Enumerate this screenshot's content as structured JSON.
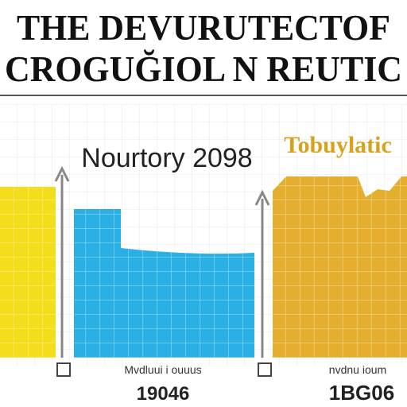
{
  "header": {
    "line1": "THE DEVURUTECTOF",
    "line2": "CROGUĞIOL N REUTIC"
  },
  "panel": {
    "left_title": "Nourtory 2098",
    "right_title": "Tobuylatic",
    "bottom_labels": [
      "Mvdluui i ouuus",
      "nvdnu ioum"
    ],
    "bottom_numbers": [
      "19046",
      "1BG06"
    ]
  }
}
